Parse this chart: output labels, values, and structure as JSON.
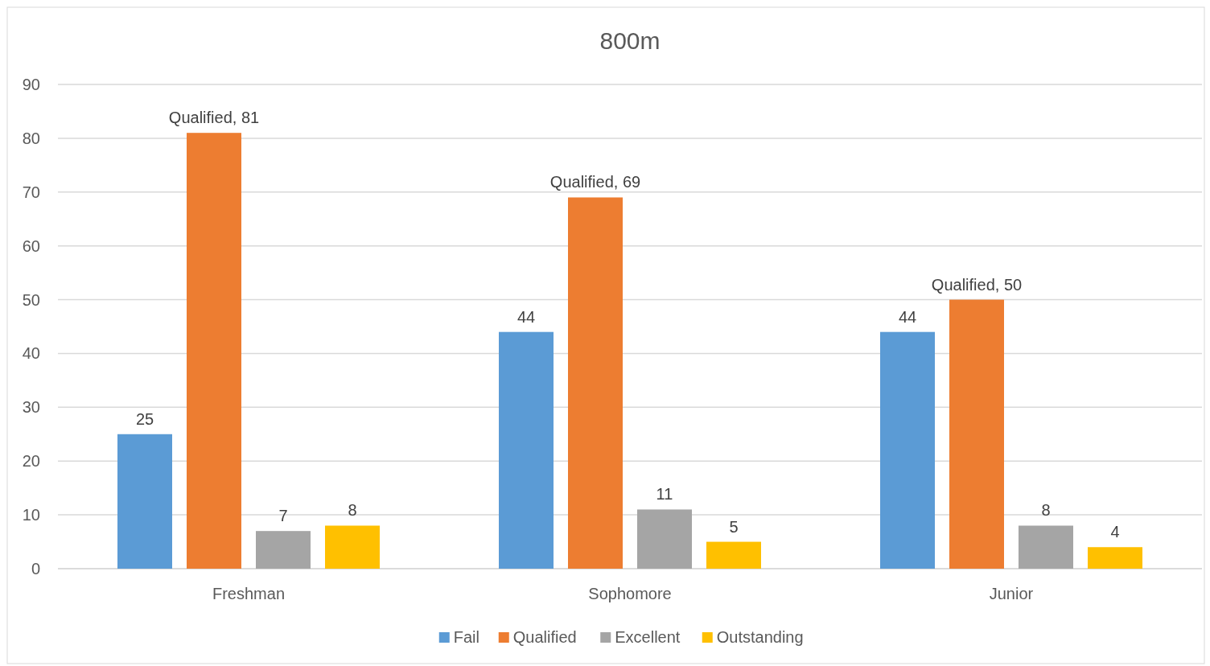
{
  "chart_data": {
    "type": "bar",
    "title": "800m",
    "categories": [
      "Freshman",
      "Sophomore",
      "Junior"
    ],
    "series": [
      {
        "name": "Fail",
        "color": "#5b9bd5",
        "values": [
          25,
          44,
          44
        ],
        "value_labels": [
          "25",
          "44",
          "44"
        ]
      },
      {
        "name": "Qualified",
        "color": "#ed7d31",
        "values": [
          81,
          69,
          50
        ],
        "value_labels": [
          "Qualified, 81",
          "Qualified, 69",
          "Qualified, 50"
        ]
      },
      {
        "name": "Excellent",
        "color": "#a5a5a5",
        "values": [
          7,
          11,
          8
        ],
        "value_labels": [
          "7",
          "11",
          "8"
        ]
      },
      {
        "name": "Outstanding",
        "color": "#ffc000",
        "values": [
          8,
          5,
          4
        ],
        "value_labels": [
          "8",
          "5",
          "4"
        ]
      }
    ],
    "ylim": [
      0,
      90
    ],
    "yticks": [
      0,
      10,
      20,
      30,
      40,
      50,
      60,
      70,
      80,
      90
    ],
    "grid": "y",
    "legend": "bottom"
  }
}
